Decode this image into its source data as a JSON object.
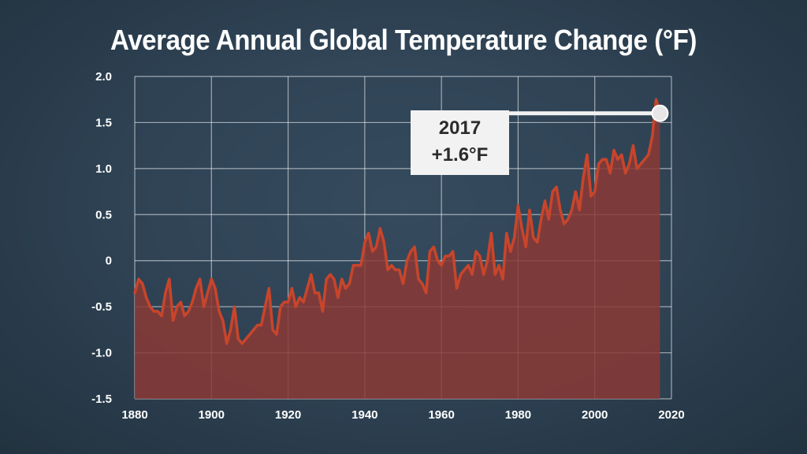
{
  "title": "Average Annual Global Temperature Change (°F)",
  "callout": {
    "year": "2017",
    "value": "+1.6°F"
  },
  "colors": {
    "line": "#c8452b",
    "fill": "#8a3a35",
    "grid": "#ffffff",
    "background": "#2c3f50"
  },
  "chart_data": {
    "type": "area",
    "title": "Average Annual Global Temperature Change (°F)",
    "xlabel": "",
    "ylabel": "",
    "xlim": [
      1880,
      2020
    ],
    "ylim": [
      -1.5,
      2.0
    ],
    "xticks": [
      "1880",
      "1900",
      "1920",
      "1940",
      "1960",
      "1980",
      "2000",
      "2020"
    ],
    "yticks": [
      "2.0",
      "1.5",
      "1.0",
      "0.5",
      "0",
      "-0.5",
      "-1.0",
      "-1.5"
    ],
    "grid": true,
    "highlight": {
      "x": 2017,
      "y": 1.6
    },
    "x": [
      1880,
      1881,
      1882,
      1883,
      1884,
      1885,
      1886,
      1887,
      1888,
      1889,
      1890,
      1891,
      1892,
      1893,
      1894,
      1895,
      1896,
      1897,
      1898,
      1899,
      1900,
      1901,
      1902,
      1903,
      1904,
      1905,
      1906,
      1907,
      1908,
      1909,
      1910,
      1911,
      1912,
      1913,
      1914,
      1915,
      1916,
      1917,
      1918,
      1919,
      1920,
      1921,
      1922,
      1923,
      1924,
      1925,
      1926,
      1927,
      1928,
      1929,
      1930,
      1931,
      1932,
      1933,
      1934,
      1935,
      1936,
      1937,
      1938,
      1939,
      1940,
      1941,
      1942,
      1943,
      1944,
      1945,
      1946,
      1947,
      1948,
      1949,
      1950,
      1951,
      1952,
      1953,
      1954,
      1955,
      1956,
      1957,
      1958,
      1959,
      1960,
      1961,
      1962,
      1963,
      1964,
      1965,
      1966,
      1967,
      1968,
      1969,
      1970,
      1971,
      1972,
      1973,
      1974,
      1975,
      1976,
      1977,
      1978,
      1979,
      1980,
      1981,
      1982,
      1983,
      1984,
      1985,
      1986,
      1987,
      1988,
      1989,
      1990,
      1991,
      1992,
      1993,
      1994,
      1995,
      1996,
      1997,
      1998,
      1999,
      2000,
      2001,
      2002,
      2003,
      2004,
      2005,
      2006,
      2007,
      2008,
      2009,
      2010,
      2011,
      2012,
      2013,
      2014,
      2015,
      2016,
      2017
    ],
    "values": [
      -0.35,
      -0.2,
      -0.25,
      -0.4,
      -0.5,
      -0.55,
      -0.55,
      -0.6,
      -0.35,
      -0.2,
      -0.65,
      -0.5,
      -0.45,
      -0.6,
      -0.55,
      -0.45,
      -0.3,
      -0.2,
      -0.5,
      -0.35,
      -0.2,
      -0.3,
      -0.55,
      -0.65,
      -0.9,
      -0.75,
      -0.5,
      -0.85,
      -0.9,
      -0.85,
      -0.8,
      -0.75,
      -0.7,
      -0.7,
      -0.5,
      -0.3,
      -0.75,
      -0.8,
      -0.5,
      -0.45,
      -0.45,
      -0.3,
      -0.5,
      -0.4,
      -0.45,
      -0.3,
      -0.15,
      -0.35,
      -0.35,
      -0.55,
      -0.2,
      -0.15,
      -0.2,
      -0.4,
      -0.2,
      -0.3,
      -0.25,
      -0.05,
      -0.05,
      -0.05,
      0.2,
      0.3,
      0.1,
      0.15,
      0.35,
      0.2,
      -0.1,
      -0.05,
      -0.1,
      -0.1,
      -0.25,
      0.0,
      0.1,
      0.15,
      -0.2,
      -0.25,
      -0.35,
      0.1,
      0.15,
      0.0,
      -0.05,
      0.05,
      0.05,
      0.1,
      -0.3,
      -0.15,
      -0.1,
      -0.05,
      -0.15,
      0.1,
      0.05,
      -0.15,
      0.0,
      0.3,
      -0.15,
      -0.05,
      -0.2,
      0.3,
      0.1,
      0.25,
      0.6,
      0.35,
      0.15,
      0.55,
      0.25,
      0.2,
      0.45,
      0.65,
      0.45,
      0.75,
      0.8,
      0.55,
      0.4,
      0.45,
      0.55,
      0.75,
      0.55,
      0.9,
      1.15,
      0.7,
      0.75,
      1.05,
      1.1,
      1.1,
      0.95,
      1.2,
      1.1,
      1.15,
      0.95,
      1.05,
      1.25,
      1.0,
      1.05,
      1.1,
      1.15,
      1.35,
      1.75,
      1.6
    ]
  }
}
